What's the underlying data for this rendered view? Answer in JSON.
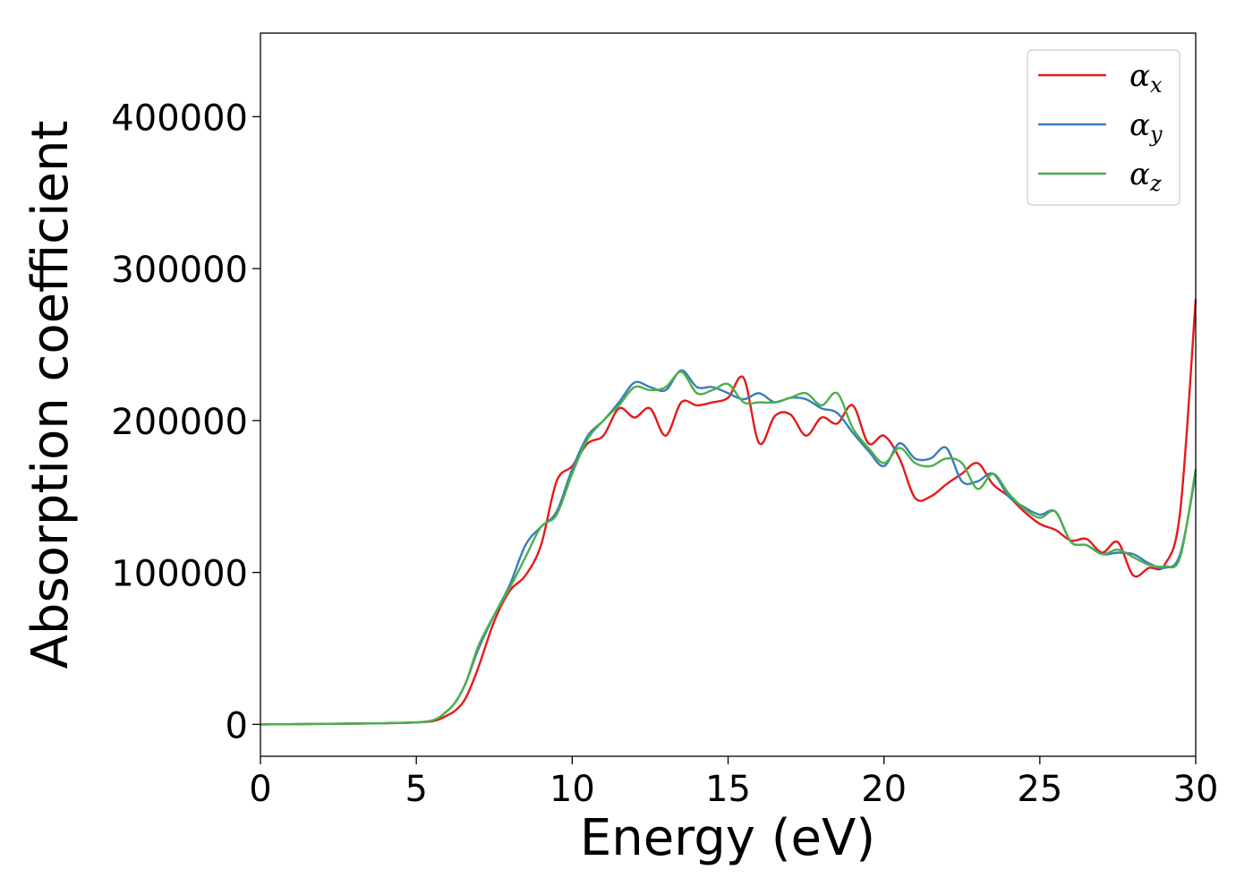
{
  "chart_data": {
    "type": "line",
    "title": "",
    "xlabel": "Energy (eV)",
    "ylabel": "Absorption coefficient",
    "xlim": [
      0,
      30
    ],
    "ylim": [
      -21000,
      455000
    ],
    "xticks": [
      0,
      5,
      10,
      15,
      20,
      25,
      30
    ],
    "xtick_labels": [
      "0",
      "5",
      "10",
      "15",
      "20",
      "25",
      "30"
    ],
    "yticks": [
      0,
      100000,
      200000,
      300000,
      400000
    ],
    "ytick_labels": [
      "0",
      "100000",
      "200000",
      "300000",
      "400000"
    ],
    "grid": false,
    "legend_position": "top-right",
    "series": [
      {
        "name": "αx",
        "legend_base": "α",
        "legend_sub": "x",
        "color": "#e41a1c",
        "x": [
          0,
          3,
          4.5,
          5.5,
          6,
          6.3,
          6.6,
          7,
          7.5,
          8,
          8.5,
          9,
          9.5,
          10,
          10.5,
          11,
          11.5,
          12,
          12.5,
          13,
          13.5,
          14,
          14.5,
          15,
          15.5,
          16,
          16.5,
          17,
          17.5,
          18,
          18.5,
          19,
          19.5,
          20,
          20.5,
          21,
          21.5,
          22,
          22.5,
          23,
          23.5,
          24,
          24.5,
          25,
          25.5,
          26,
          26.5,
          27,
          27.5,
          28,
          28.5,
          29,
          29.5,
          30
        ],
        "y": [
          0,
          500,
          1000,
          2000,
          6000,
          10000,
          18000,
          38000,
          68000,
          88000,
          98000,
          118000,
          160000,
          170000,
          185000,
          190000,
          208000,
          202000,
          208000,
          190000,
          212000,
          210000,
          212000,
          215000,
          228000,
          185000,
          203000,
          204000,
          190000,
          202000,
          198000,
          210000,
          185000,
          190000,
          175000,
          149000,
          150000,
          158000,
          165000,
          172000,
          158000,
          150000,
          140000,
          132000,
          128000,
          121000,
          122000,
          113000,
          120000,
          98000,
          103000,
          105000,
          140000,
          280000
        ]
      },
      {
        "name": "αy",
        "legend_base": "α",
        "legend_sub": "y",
        "color": "#377eb8",
        "x": [
          0,
          3,
          4.5,
          5.5,
          6,
          6.3,
          6.6,
          7,
          7.5,
          8,
          8.5,
          9,
          9.5,
          10,
          10.5,
          11,
          11.5,
          12,
          12.5,
          13,
          13.5,
          14,
          14.5,
          15,
          15.5,
          16,
          16.5,
          17,
          17.5,
          18,
          18.5,
          19,
          19.5,
          20,
          20.5,
          21,
          21.5,
          22,
          22.5,
          23,
          23.5,
          24,
          24.5,
          25,
          25.5,
          26,
          26.5,
          27,
          27.5,
          28,
          28.5,
          29,
          29.5,
          30
        ],
        "y": [
          0,
          500,
          1000,
          2500,
          9000,
          16000,
          28000,
          50000,
          72000,
          92000,
          118000,
          130000,
          140000,
          168000,
          190000,
          200000,
          212000,
          225000,
          222000,
          220000,
          233000,
          222000,
          222000,
          218000,
          214000,
          218000,
          212000,
          215000,
          214000,
          208000,
          205000,
          192000,
          180000,
          170000,
          185000,
          175000,
          175000,
          182000,
          160000,
          160000,
          165000,
          150000,
          143000,
          138000,
          140000,
          120000,
          118000,
          112000,
          113000,
          112000,
          106000,
          103000,
          112000,
          165000
        ]
      },
      {
        "name": "αz",
        "legend_base": "α",
        "legend_sub": "z",
        "color": "#4daf4a",
        "x": [
          0,
          3,
          4.5,
          5.5,
          6,
          6.3,
          6.6,
          7,
          7.5,
          8,
          8.5,
          9,
          9.5,
          10,
          10.5,
          11,
          11.5,
          12,
          12.5,
          13,
          13.5,
          14,
          14.5,
          15,
          15.5,
          16,
          16.5,
          17,
          17.5,
          18,
          18.5,
          19,
          19.5,
          20,
          20.5,
          21,
          21.5,
          22,
          22.5,
          23,
          23.5,
          24,
          24.5,
          25,
          25.5,
          26,
          26.5,
          27,
          27.5,
          28,
          28.5,
          29,
          29.5,
          30
        ],
        "y": [
          0,
          500,
          1000,
          2500,
          9000,
          16000,
          28000,
          52000,
          72000,
          90000,
          110000,
          130000,
          138000,
          165000,
          188000,
          200000,
          210000,
          222000,
          220000,
          222000,
          232000,
          218000,
          220000,
          224000,
          212000,
          212000,
          212000,
          215000,
          218000,
          210000,
          218000,
          195000,
          182000,
          172000,
          182000,
          172000,
          170000,
          175000,
          172000,
          155000,
          165000,
          152000,
          142000,
          136000,
          140000,
          120000,
          118000,
          112000,
          115000,
          110000,
          105000,
          104000,
          110000,
          168000
        ]
      }
    ]
  }
}
